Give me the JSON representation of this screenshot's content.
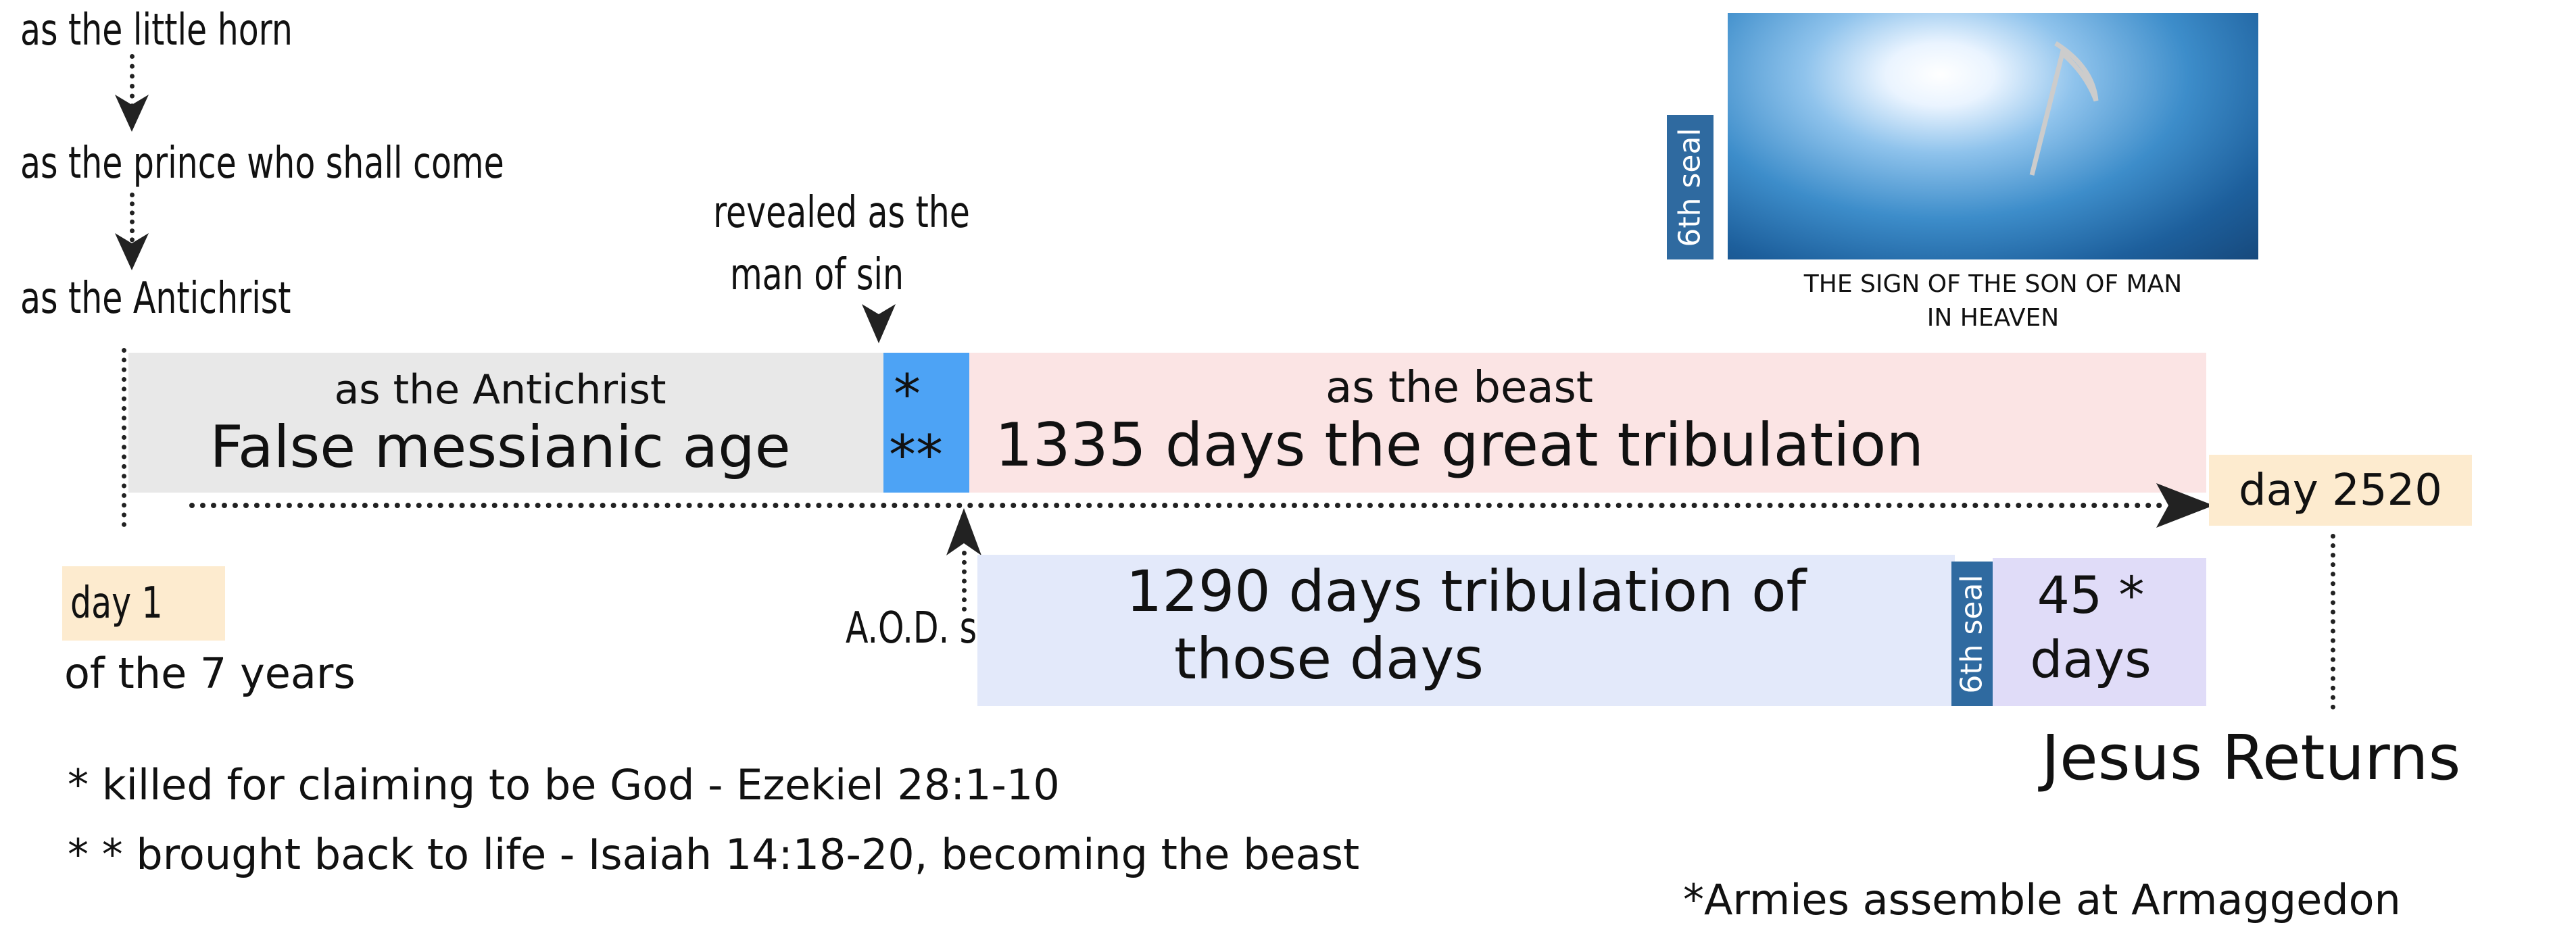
{
  "stages": {
    "little_horn": "as the little horn",
    "prince": "as the prince who shall come",
    "antichrist": "as the Antichrist"
  },
  "revealed": {
    "line1": "revealed as the",
    "line2": "man of sin"
  },
  "timeline": {
    "grey": {
      "subtitle": "as the Antichrist",
      "title": "False messianic age",
      "color": "#e8e8e8"
    },
    "blue": {
      "line1": "*",
      "line2": "**",
      "color": "#4da3f5"
    },
    "pink": {
      "subtitle": "as the beast",
      "title": "1335 days the great tribulation",
      "color": "#fbe4e4"
    },
    "lavender": {
      "line1": "1290 days tribulation of",
      "line2": "those days",
      "color": "#e3e9fa"
    },
    "seal_small": "6th seal",
    "days45": {
      "line1": "45 *",
      "line2": "days",
      "color": "#e0dcf8"
    },
    "day1": "day 1",
    "day1_sub": "of the 7 years",
    "day2520": "day 2520",
    "day_box_color": "#fdebcf",
    "aod": "A.O.D. setup",
    "jesus": "Jesus Returns"
  },
  "image": {
    "seal": "6th seal",
    "caption1": "THE SIGN OF THE SON OF MAN",
    "caption2": "IN HEAVEN"
  },
  "notes": {
    "n1": "*  killed for claiming to be God - Ezekiel 28:1-10",
    "n2": "* * brought back to life - Isaiah 14:18-20, becoming the beast",
    "n3": "*Armies assemble at Armaggedon"
  }
}
